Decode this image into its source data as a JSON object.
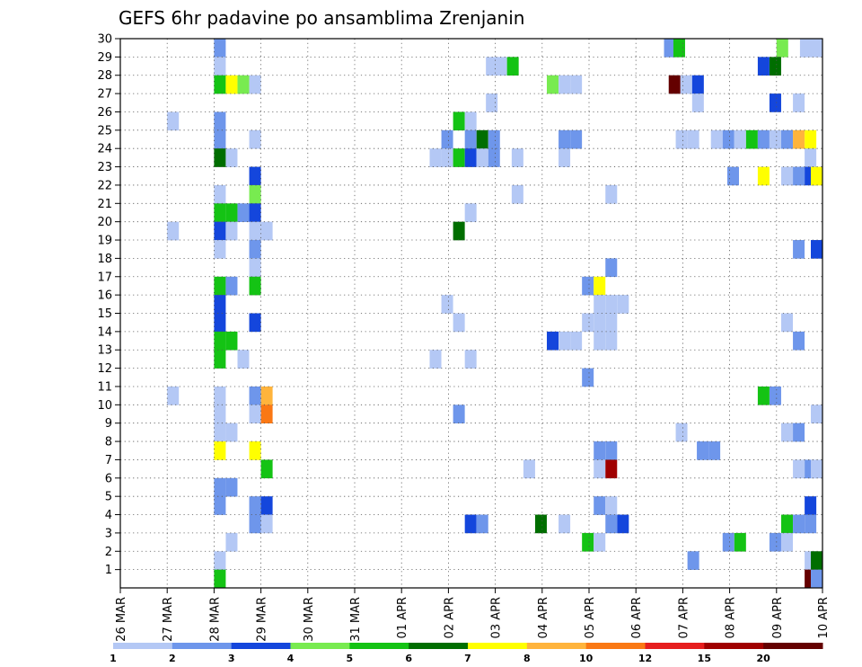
{
  "chart_data": {
    "type": "heatmap",
    "title": "GEFS 6hr padavine po ansamblima Zrenjanin",
    "x_tick_labels": [
      "26 MAR",
      "27 MAR",
      "28 MAR",
      "29 MAR",
      "30 MAR",
      "31 MAR",
      "01 APR",
      "02 APR",
      "03 APR",
      "04 APR",
      "05 APR",
      "06 APR",
      "07 APR",
      "08 APR",
      "09 APR",
      "10 APR"
    ],
    "y_tick_labels": [
      "1",
      "2",
      "3",
      "4",
      "5",
      "6",
      "7",
      "8",
      "9",
      "10",
      "11",
      "12",
      "13",
      "14",
      "15",
      "16",
      "17",
      "18",
      "19",
      "20",
      "21",
      "22",
      "23",
      "24",
      "25",
      "26",
      "27",
      "28",
      "29",
      "30"
    ],
    "x_range_days": [
      0,
      14.95
    ],
    "y_range_members": [
      0,
      30
    ],
    "grid": true,
    "colorbar": {
      "labels": [
        "1",
        "2",
        "3",
        "4",
        "5",
        "6",
        "7",
        "8",
        "10",
        "12",
        "15",
        "20"
      ],
      "colors": [
        "#b4c8f5",
        "#6e96eb",
        "#1446dc",
        "#78eb50",
        "#14c314",
        "#006e00",
        "#ffff00",
        "#ffb43c",
        "#fa7814",
        "#e61e1e",
        "#a00000",
        "#640000"
      ]
    },
    "cells": [
      {
        "day": 2.0,
        "m": 30,
        "v": 2
      },
      {
        "day": 11.6,
        "m": 30,
        "v": 2
      },
      {
        "day": 11.8,
        "m": 30,
        "v": 5
      },
      {
        "day": 14.0,
        "m": 30,
        "v": 4
      },
      {
        "day": 14.5,
        "m": 30,
        "v": 1
      },
      {
        "day": 14.75,
        "m": 30,
        "v": 1
      },
      {
        "day": 2.0,
        "m": 29,
        "v": 1
      },
      {
        "day": 7.8,
        "m": 29,
        "v": 1
      },
      {
        "day": 8.0,
        "m": 29,
        "v": 1
      },
      {
        "day": 8.25,
        "m": 29,
        "v": 5
      },
      {
        "day": 13.6,
        "m": 29,
        "v": 3
      },
      {
        "day": 13.85,
        "m": 29,
        "v": 6
      },
      {
        "day": 2.0,
        "m": 28,
        "v": 5
      },
      {
        "day": 2.25,
        "m": 28,
        "v": 7
      },
      {
        "day": 2.5,
        "m": 28,
        "v": 4
      },
      {
        "day": 2.75,
        "m": 28,
        "v": 1
      },
      {
        "day": 9.1,
        "m": 28,
        "v": 4
      },
      {
        "day": 9.35,
        "m": 28,
        "v": 1
      },
      {
        "day": 9.6,
        "m": 28,
        "v": 1
      },
      {
        "day": 11.7,
        "m": 28,
        "v": 20
      },
      {
        "day": 11.95,
        "m": 28,
        "v": 1
      },
      {
        "day": 12.2,
        "m": 28,
        "v": 3
      },
      {
        "day": 7.8,
        "m": 27,
        "v": 1
      },
      {
        "day": 12.2,
        "m": 27,
        "v": 1
      },
      {
        "day": 13.85,
        "m": 27,
        "v": 3
      },
      {
        "day": 14.35,
        "m": 27,
        "v": 1
      },
      {
        "day": 1.0,
        "m": 26,
        "v": 1
      },
      {
        "day": 2.0,
        "m": 26,
        "v": 2
      },
      {
        "day": 7.1,
        "m": 26,
        "v": 5
      },
      {
        "day": 7.35,
        "m": 26,
        "v": 1
      },
      {
        "day": 2.0,
        "m": 25,
        "v": 2
      },
      {
        "day": 2.75,
        "m": 25,
        "v": 1
      },
      {
        "day": 6.85,
        "m": 25,
        "v": 2
      },
      {
        "day": 7.35,
        "m": 25,
        "v": 2
      },
      {
        "day": 7.6,
        "m": 25,
        "v": 6
      },
      {
        "day": 7.85,
        "m": 25,
        "v": 2
      },
      {
        "day": 9.35,
        "m": 25,
        "v": 2
      },
      {
        "day": 9.6,
        "m": 25,
        "v": 2
      },
      {
        "day": 11.85,
        "m": 25,
        "v": 1
      },
      {
        "day": 12.1,
        "m": 25,
        "v": 1
      },
      {
        "day": 12.6,
        "m": 25,
        "v": 1
      },
      {
        "day": 12.85,
        "m": 25,
        "v": 2
      },
      {
        "day": 13.1,
        "m": 25,
        "v": 1
      },
      {
        "day": 13.35,
        "m": 25,
        "v": 5
      },
      {
        "day": 13.6,
        "m": 25,
        "v": 2
      },
      {
        "day": 13.85,
        "m": 25,
        "v": 1
      },
      {
        "day": 14.1,
        "m": 25,
        "v": 2
      },
      {
        "day": 14.35,
        "m": 25,
        "v": 8
      },
      {
        "day": 14.6,
        "m": 25,
        "v": 7
      },
      {
        "day": 2.0,
        "m": 24,
        "v": 6
      },
      {
        "day": 2.25,
        "m": 24,
        "v": 1
      },
      {
        "day": 6.6,
        "m": 24,
        "v": 1
      },
      {
        "day": 6.85,
        "m": 24,
        "v": 1
      },
      {
        "day": 7.1,
        "m": 24,
        "v": 5
      },
      {
        "day": 7.35,
        "m": 24,
        "v": 3
      },
      {
        "day": 7.6,
        "m": 24,
        "v": 1
      },
      {
        "day": 7.85,
        "m": 24,
        "v": 2
      },
      {
        "day": 8.35,
        "m": 24,
        "v": 1
      },
      {
        "day": 9.35,
        "m": 24,
        "v": 1
      },
      {
        "day": 14.6,
        "m": 24,
        "v": 1
      },
      {
        "day": 2.75,
        "m": 23,
        "v": 3
      },
      {
        "day": 12.95,
        "m": 23,
        "v": 2
      },
      {
        "day": 13.6,
        "m": 23,
        "v": 7
      },
      {
        "day": 14.1,
        "m": 23,
        "v": 1
      },
      {
        "day": 14.35,
        "m": 23,
        "v": 2
      },
      {
        "day": 14.6,
        "m": 23,
        "v": 3
      },
      {
        "day": 14.85,
        "m": 23,
        "v": 7
      },
      {
        "day": 2.0,
        "m": 22,
        "v": 1
      },
      {
        "day": 2.75,
        "m": 22,
        "v": 4
      },
      {
        "day": 8.35,
        "m": 22,
        "v": 1
      },
      {
        "day": 10.35,
        "m": 22,
        "v": 1
      },
      {
        "day": 2.0,
        "m": 21,
        "v": 5
      },
      {
        "day": 2.25,
        "m": 21,
        "v": 5
      },
      {
        "day": 2.5,
        "m": 21,
        "v": 2
      },
      {
        "day": 2.75,
        "m": 21,
        "v": 3
      },
      {
        "day": 7.35,
        "m": 21,
        "v": 1
      },
      {
        "day": 1.0,
        "m": 20,
        "v": 1
      },
      {
        "day": 2.0,
        "m": 20,
        "v": 3
      },
      {
        "day": 2.25,
        "m": 20,
        "v": 1
      },
      {
        "day": 2.75,
        "m": 20,
        "v": 1
      },
      {
        "day": 3.0,
        "m": 20,
        "v": 1
      },
      {
        "day": 7.1,
        "m": 20,
        "v": 6
      },
      {
        "day": 2.0,
        "m": 19,
        "v": 1
      },
      {
        "day": 2.75,
        "m": 19,
        "v": 2
      },
      {
        "day": 14.35,
        "m": 19,
        "v": 2
      },
      {
        "day": 14.9,
        "m": 19,
        "v": 3
      },
      {
        "day": 2.75,
        "m": 18,
        "v": 1
      },
      {
        "day": 10.35,
        "m": 18,
        "v": 2
      },
      {
        "day": 2.0,
        "m": 17,
        "v": 5
      },
      {
        "day": 2.25,
        "m": 17,
        "v": 2
      },
      {
        "day": 2.75,
        "m": 17,
        "v": 5
      },
      {
        "day": 9.85,
        "m": 17,
        "v": 2
      },
      {
        "day": 10.1,
        "m": 17,
        "v": 7
      },
      {
        "day": 2.0,
        "m": 16,
        "v": 3
      },
      {
        "day": 6.85,
        "m": 16,
        "v": 1
      },
      {
        "day": 10.1,
        "m": 16,
        "v": 1
      },
      {
        "day": 10.35,
        "m": 16,
        "v": 1
      },
      {
        "day": 10.6,
        "m": 16,
        "v": 1
      },
      {
        "day": 2.0,
        "m": 15,
        "v": 3
      },
      {
        "day": 2.75,
        "m": 15,
        "v": 3
      },
      {
        "day": 7.1,
        "m": 15,
        "v": 1
      },
      {
        "day": 9.85,
        "m": 15,
        "v": 1
      },
      {
        "day": 10.1,
        "m": 15,
        "v": 1
      },
      {
        "day": 10.35,
        "m": 15,
        "v": 1
      },
      {
        "day": 14.1,
        "m": 15,
        "v": 1
      },
      {
        "day": 2.0,
        "m": 14,
        "v": 5
      },
      {
        "day": 2.25,
        "m": 14,
        "v": 5
      },
      {
        "day": 9.1,
        "m": 14,
        "v": 3
      },
      {
        "day": 9.35,
        "m": 14,
        "v": 1
      },
      {
        "day": 9.6,
        "m": 14,
        "v": 1
      },
      {
        "day": 10.1,
        "m": 14,
        "v": 1
      },
      {
        "day": 10.35,
        "m": 14,
        "v": 1
      },
      {
        "day": 14.35,
        "m": 14,
        "v": 2
      },
      {
        "day": 2.0,
        "m": 13,
        "v": 5
      },
      {
        "day": 2.5,
        "m": 13,
        "v": 1
      },
      {
        "day": 6.6,
        "m": 13,
        "v": 1
      },
      {
        "day": 7.35,
        "m": 13,
        "v": 1
      },
      {
        "day": 9.85,
        "m": 12,
        "v": 2
      },
      {
        "day": 1.0,
        "m": 11,
        "v": 1
      },
      {
        "day": 2.0,
        "m": 11,
        "v": 1
      },
      {
        "day": 2.75,
        "m": 11,
        "v": 2
      },
      {
        "day": 3.0,
        "m": 11,
        "v": 8
      },
      {
        "day": 13.6,
        "m": 11,
        "v": 5
      },
      {
        "day": 13.85,
        "m": 11,
        "v": 2
      },
      {
        "day": 2.0,
        "m": 10,
        "v": 1
      },
      {
        "day": 2.75,
        "m": 10,
        "v": 1
      },
      {
        "day": 3.0,
        "m": 10,
        "v": 10
      },
      {
        "day": 7.1,
        "m": 10,
        "v": 2
      },
      {
        "day": 14.9,
        "m": 10,
        "v": 1
      },
      {
        "day": 2.0,
        "m": 9,
        "v": 1
      },
      {
        "day": 2.25,
        "m": 9,
        "v": 1
      },
      {
        "day": 11.85,
        "m": 9,
        "v": 1
      },
      {
        "day": 14.1,
        "m": 9,
        "v": 1
      },
      {
        "day": 14.35,
        "m": 9,
        "v": 2
      },
      {
        "day": 2.0,
        "m": 8,
        "v": 7
      },
      {
        "day": 2.75,
        "m": 8,
        "v": 7
      },
      {
        "day": 10.1,
        "m": 8,
        "v": 2
      },
      {
        "day": 10.35,
        "m": 8,
        "v": 2
      },
      {
        "day": 12.3,
        "m": 8,
        "v": 2
      },
      {
        "day": 12.55,
        "m": 8,
        "v": 2
      },
      {
        "day": 3.0,
        "m": 7,
        "v": 5
      },
      {
        "day": 8.6,
        "m": 7,
        "v": 1
      },
      {
        "day": 10.1,
        "m": 7,
        "v": 1
      },
      {
        "day": 10.35,
        "m": 7,
        "v": 15
      },
      {
        "day": 14.35,
        "m": 7,
        "v": 1
      },
      {
        "day": 14.6,
        "m": 7,
        "v": 2
      },
      {
        "day": 14.85,
        "m": 7,
        "v": 1
      },
      {
        "day": 2.0,
        "m": 6,
        "v": 2
      },
      {
        "day": 2.25,
        "m": 6,
        "v": 2
      },
      {
        "day": 2.0,
        "m": 5,
        "v": 2
      },
      {
        "day": 2.75,
        "m": 5,
        "v": 2
      },
      {
        "day": 3.0,
        "m": 5,
        "v": 3
      },
      {
        "day": 10.1,
        "m": 5,
        "v": 2
      },
      {
        "day": 10.35,
        "m": 5,
        "v": 1
      },
      {
        "day": 14.6,
        "m": 5,
        "v": 3
      },
      {
        "day": 2.75,
        "m": 4,
        "v": 2
      },
      {
        "day": 3.0,
        "m": 4,
        "v": 1
      },
      {
        "day": 7.35,
        "m": 4,
        "v": 3
      },
      {
        "day": 7.6,
        "m": 4,
        "v": 2
      },
      {
        "day": 8.85,
        "m": 4,
        "v": 6
      },
      {
        "day": 9.35,
        "m": 4,
        "v": 1
      },
      {
        "day": 10.35,
        "m": 4,
        "v": 2
      },
      {
        "day": 10.6,
        "m": 4,
        "v": 3
      },
      {
        "day": 14.1,
        "m": 4,
        "v": 5
      },
      {
        "day": 14.35,
        "m": 4,
        "v": 2
      },
      {
        "day": 14.6,
        "m": 4,
        "v": 2
      },
      {
        "day": 2.25,
        "m": 3,
        "v": 1
      },
      {
        "day": 9.85,
        "m": 3,
        "v": 5
      },
      {
        "day": 10.1,
        "m": 3,
        "v": 1
      },
      {
        "day": 12.85,
        "m": 3,
        "v": 2
      },
      {
        "day": 13.1,
        "m": 3,
        "v": 5
      },
      {
        "day": 13.85,
        "m": 3,
        "v": 2
      },
      {
        "day": 14.1,
        "m": 3,
        "v": 1
      },
      {
        "day": 2.0,
        "m": 2,
        "v": 1
      },
      {
        "day": 12.1,
        "m": 2,
        "v": 2
      },
      {
        "day": 14.6,
        "m": 2,
        "v": 1
      },
      {
        "day": 14.85,
        "m": 2,
        "v": 6
      },
      {
        "day": 2.0,
        "m": 1,
        "v": 5
      },
      {
        "day": 14.6,
        "m": 1,
        "v": 20
      },
      {
        "day": 14.85,
        "m": 1,
        "v": 2
      }
    ]
  }
}
